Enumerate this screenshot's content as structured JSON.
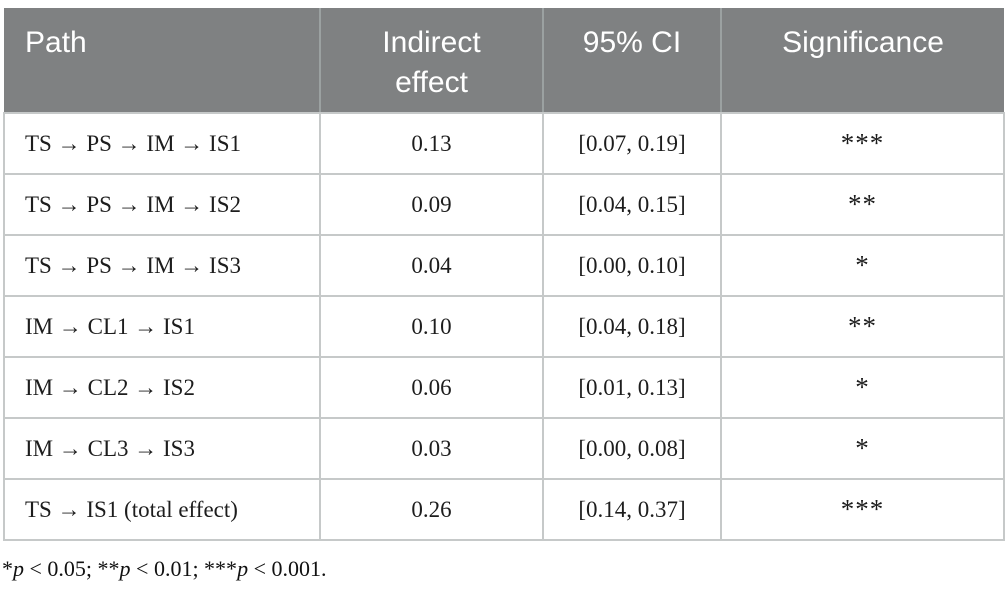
{
  "table": {
    "columns": [
      {
        "label": "Path"
      },
      {
        "label": "Indirect\neffect"
      },
      {
        "label": "95% CI"
      },
      {
        "label": "Significance"
      }
    ],
    "rows": [
      {
        "path": "TS → PS → IM → IS1",
        "effect": "0.13",
        "ci": "[0.07, 0.19]",
        "sig": "***"
      },
      {
        "path": "TS → PS → IM → IS2",
        "effect": "0.09",
        "ci": "[0.04, 0.15]",
        "sig": "**"
      },
      {
        "path": "TS → PS → IM → IS3",
        "effect": "0.04",
        "ci": "[0.00, 0.10]",
        "sig": "*"
      },
      {
        "path": "IM → CL1 → IS1",
        "effect": "0.10",
        "ci": "[0.04, 0.18]",
        "sig": "**"
      },
      {
        "path": "IM → CL2 → IS2",
        "effect": "0.06",
        "ci": "[0.01, 0.13]",
        "sig": "*"
      },
      {
        "path": "IM → CL3 → IS3",
        "effect": "0.03",
        "ci": "[0.00, 0.08]",
        "sig": "*"
      },
      {
        "path": "TS → IS1 (total effect)",
        "effect": "0.26",
        "ci": "[0.14, 0.37]",
        "sig": "***"
      }
    ]
  },
  "footnote": {
    "seg0": "*",
    "seg1": "p",
    "seg2": " < 0.05; **",
    "seg3": "p",
    "seg4": " < 0.01; ***",
    "seg5": "p",
    "seg6": " < 0.001."
  },
  "colors": {
    "header_bg": "#7f8182",
    "header_text": "#ffffff",
    "body_text": "#1d1d1d",
    "grid_line": "#c6c9c9",
    "header_divider": "#9ba1a1"
  }
}
